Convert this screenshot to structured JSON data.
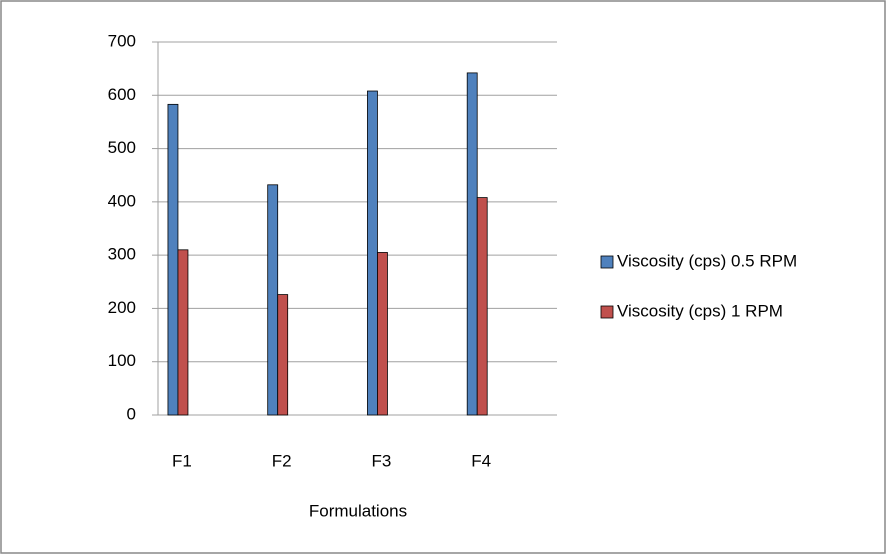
{
  "chart_data": {
    "type": "bar",
    "x_label": "Formulations",
    "categories": [
      "F1",
      "F2",
      "F3",
      "F4"
    ],
    "series": [
      {
        "name": "Viscosity (cps) 0.5 RPM",
        "color": "#4f81bd",
        "values": [
          583,
          432,
          608,
          642
        ]
      },
      {
        "name": "Viscosity (cps) 1 RPM",
        "color": "#c0504d",
        "values": [
          310,
          226,
          305,
          408
        ]
      }
    ],
    "ylim": [
      0,
      700
    ],
    "yticks": [
      0,
      100,
      200,
      300,
      400,
      500,
      600,
      700
    ],
    "grid": true,
    "legend": "right"
  }
}
